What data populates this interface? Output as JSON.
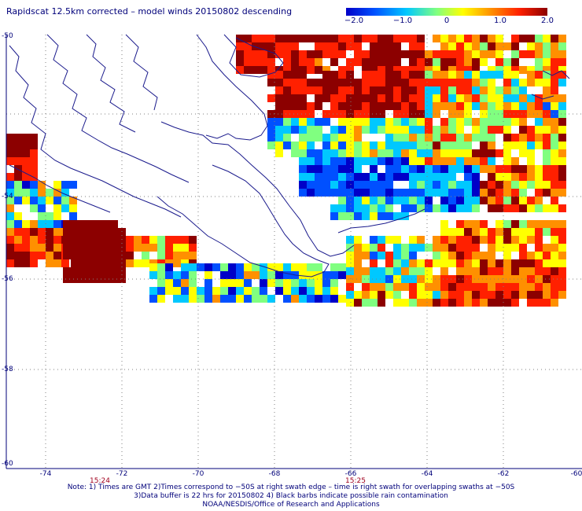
{
  "title": "Rapidscat 12.5km corrected – model winds 20150802 descending",
  "colorbar": {
    "labels": [
      "−2.0",
      "−1.0",
      "0",
      "1.0",
      "2.0"
    ],
    "colors": [
      "#0000c8",
      "#0050ff",
      "#00c8ff",
      "#80ff80",
      "#ffff00",
      "#ff9000",
      "#ff2000",
      "#8c0000"
    ]
  },
  "axes": {
    "x_ticks": [
      "-74",
      "-72",
      "-70",
      "-68",
      "-66",
      "-64",
      "-62",
      "-60"
    ],
    "y_ticks": [
      "-50",
      "-54",
      "-56",
      "-58",
      "-60"
    ]
  },
  "times": [
    "15:24",
    "15:25"
  ],
  "notes": [
    "Note: 1) Times are GMT 2)Times correspond to −50S at right swath edge – time is right swath for overlapping swaths at −50S",
    "3)Data buffer is 22 hrs for 20150802 4) Black barbs indicate possible rain contamination",
    "NOAA/NESDIS/Office of Research and Applications"
  ],
  "colors": {
    "text": "#00007a",
    "time_text": "#a0001e",
    "coast": "#1a1a8c",
    "grid": "#808080"
  }
}
